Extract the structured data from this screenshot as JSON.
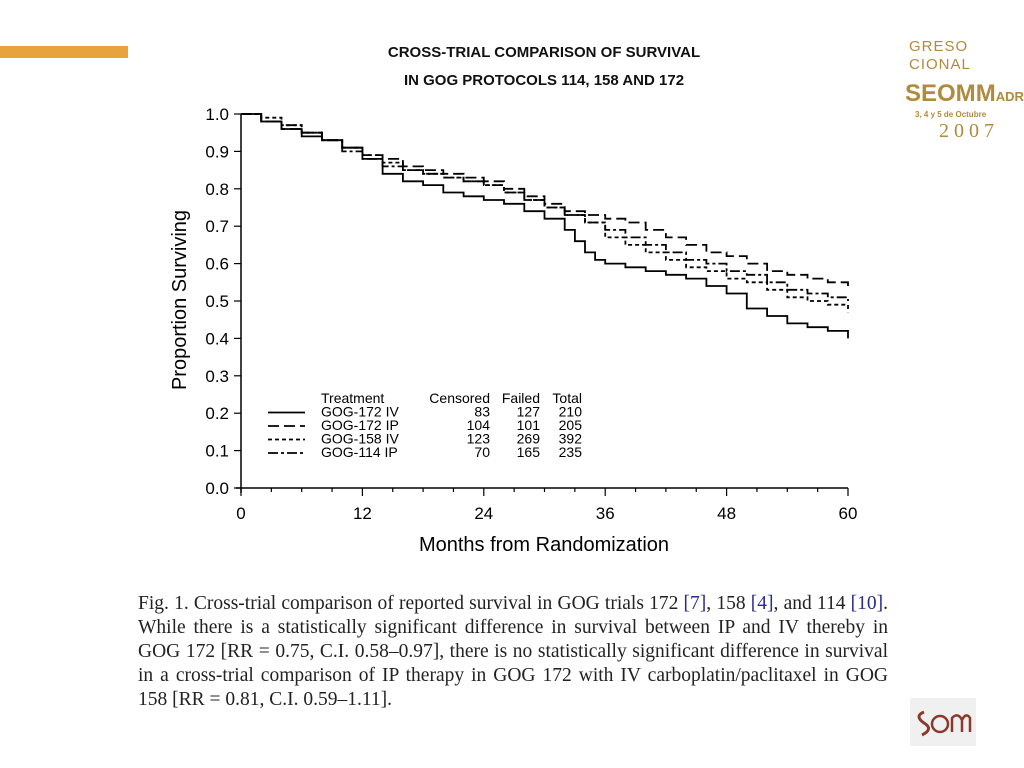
{
  "logo_congress": {
    "line1": "GRESO",
    "line2": "CIONAL",
    "line3_main": "SEOM",
    "line3_city": "ADRID",
    "line4": "3, 4 y 5 de Octubre",
    "line5": "2007"
  },
  "caption": {
    "p1": "Fig. 1. Cross-trial comparison of reported survival in GOG trials 172 ",
    "r1": "[7]",
    "p2": ", 158 ",
    "r2": "[4]",
    "p3": ", and 114 ",
    "r3": "[10]",
    "p4": ". While there is a statistically significant difference in survival between IP and IV thereby in GOG 172 [RR = 0.75, C.I. 0.58–0.97], there is no statistically significant difference in survival in a cross-trial comparison of IP therapy in GOG 172 with IV carboplatin/paclitaxel in GOG 158 [RR = 0.81, C.I. 0.59–1.11]."
  },
  "colors": {
    "accent": "#e8a33d",
    "logo": "#b08a3e",
    "series": "#000000"
  },
  "chart_data": {
    "type": "line",
    "title": [
      "CROSS-TRIAL COMPARISON OF SURVIVAL",
      "IN GOG PROTOCOLS 114, 158 AND 172"
    ],
    "xlabel": "Months from Randomization",
    "ylabel": "Proportion Surviving",
    "xlim": [
      0,
      60
    ],
    "ylim": [
      0,
      1
    ],
    "xticks": [
      "0",
      "12",
      "24",
      "36",
      "48",
      "60"
    ],
    "yticks": [
      "0.0",
      "0.1",
      "0.2",
      "0.3",
      "0.4",
      "0.5",
      "0.6",
      "0.7",
      "0.8",
      "0.9",
      "1.0"
    ],
    "grid": false,
    "legend": {
      "position": "bottom-left",
      "headers": [
        "Treatment",
        "Censored",
        "Failed",
        "Total"
      ],
      "rows": [
        {
          "name": "GOG-172 IV",
          "censored": "83",
          "failed": "127",
          "total": "210"
        },
        {
          "name": "GOG-172 IP",
          "censored": "104",
          "failed": "101",
          "total": "205"
        },
        {
          "name": "GOG-158 IV",
          "censored": "123",
          "failed": "269",
          "total": "392"
        },
        {
          "name": "GOG-114 IP",
          "censored": "70",
          "failed": "165",
          "total": "235"
        }
      ]
    },
    "series": [
      {
        "name": "GOG-172 IV",
        "style": "solid",
        "x": [
          0,
          2,
          4,
          6,
          8,
          10,
          12,
          14,
          16,
          18,
          20,
          22,
          24,
          26,
          28,
          30,
          32,
          33,
          34,
          35,
          36,
          38,
          40,
          42,
          44,
          46,
          48,
          50,
          52,
          54,
          56,
          58,
          60
        ],
        "y": [
          1.0,
          0.98,
          0.96,
          0.94,
          0.93,
          0.91,
          0.88,
          0.84,
          0.82,
          0.81,
          0.79,
          0.78,
          0.77,
          0.76,
          0.74,
          0.72,
          0.69,
          0.66,
          0.63,
          0.61,
          0.6,
          0.59,
          0.58,
          0.57,
          0.56,
          0.54,
          0.52,
          0.48,
          0.46,
          0.44,
          0.43,
          0.42,
          0.4
        ]
      },
      {
        "name": "GOG-172 IP",
        "style": "long-dash",
        "x": [
          0,
          2,
          4,
          6,
          8,
          10,
          12,
          14,
          16,
          18,
          20,
          22,
          24,
          26,
          28,
          30,
          32,
          34,
          36,
          38,
          40,
          42,
          44,
          46,
          48,
          50,
          52,
          54,
          56,
          58,
          60
        ],
        "y": [
          1.0,
          0.98,
          0.96,
          0.95,
          0.93,
          0.91,
          0.89,
          0.88,
          0.86,
          0.85,
          0.84,
          0.83,
          0.82,
          0.8,
          0.78,
          0.76,
          0.74,
          0.73,
          0.72,
          0.71,
          0.69,
          0.67,
          0.65,
          0.63,
          0.62,
          0.6,
          0.58,
          0.57,
          0.56,
          0.55,
          0.53
        ]
      },
      {
        "name": "GOG-158 IV",
        "style": "short-dash",
        "x": [
          0,
          2,
          4,
          6,
          8,
          10,
          12,
          14,
          16,
          18,
          20,
          22,
          24,
          26,
          28,
          30,
          32,
          34,
          36,
          38,
          40,
          42,
          44,
          46,
          48,
          50,
          52,
          54,
          56,
          58,
          60
        ],
        "y": [
          1.0,
          0.99,
          0.97,
          0.95,
          0.93,
          0.91,
          0.89,
          0.87,
          0.85,
          0.84,
          0.83,
          0.82,
          0.81,
          0.79,
          0.77,
          0.75,
          0.73,
          0.71,
          0.67,
          0.65,
          0.63,
          0.61,
          0.59,
          0.58,
          0.56,
          0.55,
          0.53,
          0.51,
          0.5,
          0.49,
          0.47
        ]
      },
      {
        "name": "GOG-114 IP",
        "style": "dash-dot",
        "x": [
          0,
          2,
          4,
          6,
          8,
          10,
          12,
          14,
          16,
          18,
          20,
          22,
          24,
          26,
          28,
          30,
          32,
          34,
          36,
          38,
          40,
          42,
          44,
          46,
          48,
          50,
          52,
          54,
          56,
          58,
          60
        ],
        "y": [
          1.0,
          0.98,
          0.97,
          0.95,
          0.93,
          0.9,
          0.88,
          0.86,
          0.85,
          0.84,
          0.83,
          0.82,
          0.81,
          0.79,
          0.77,
          0.75,
          0.73,
          0.71,
          0.69,
          0.67,
          0.65,
          0.63,
          0.61,
          0.6,
          0.58,
          0.57,
          0.55,
          0.53,
          0.52,
          0.51,
          0.5
        ]
      }
    ]
  }
}
